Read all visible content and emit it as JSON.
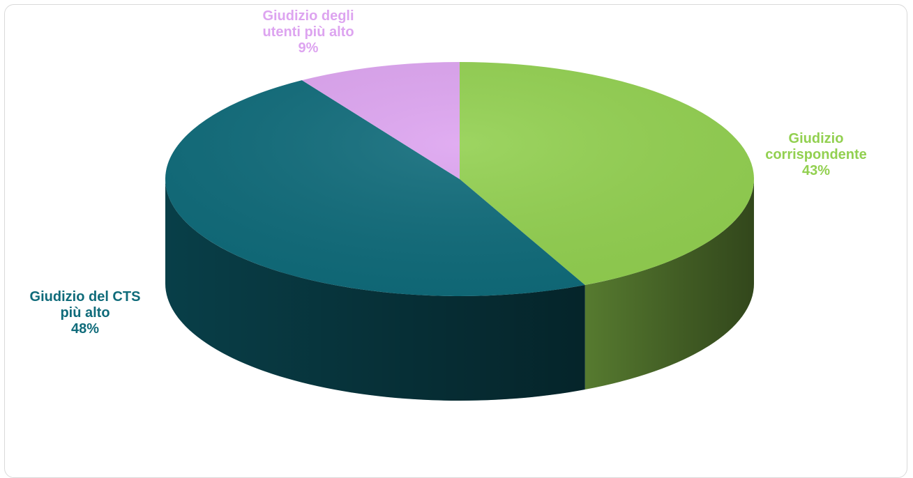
{
  "chart_data": {
    "type": "pie",
    "style": "3d",
    "title": "",
    "legend": "none",
    "slices": [
      {
        "label_lines": [
          "Giudizio",
          "corrispondente"
        ],
        "value": 43,
        "value_label": "43%",
        "color": "#92d050"
      },
      {
        "label_lines": [
          "Giudizio del CTS",
          "più alto"
        ],
        "value": 48,
        "value_label": "48%",
        "color": "#0f6b7a"
      },
      {
        "label_lines": [
          "Giudizio degli",
          "utenti più alto"
        ],
        "value": 9,
        "value_label": "9%",
        "color": "#dda4f0"
      }
    ]
  }
}
